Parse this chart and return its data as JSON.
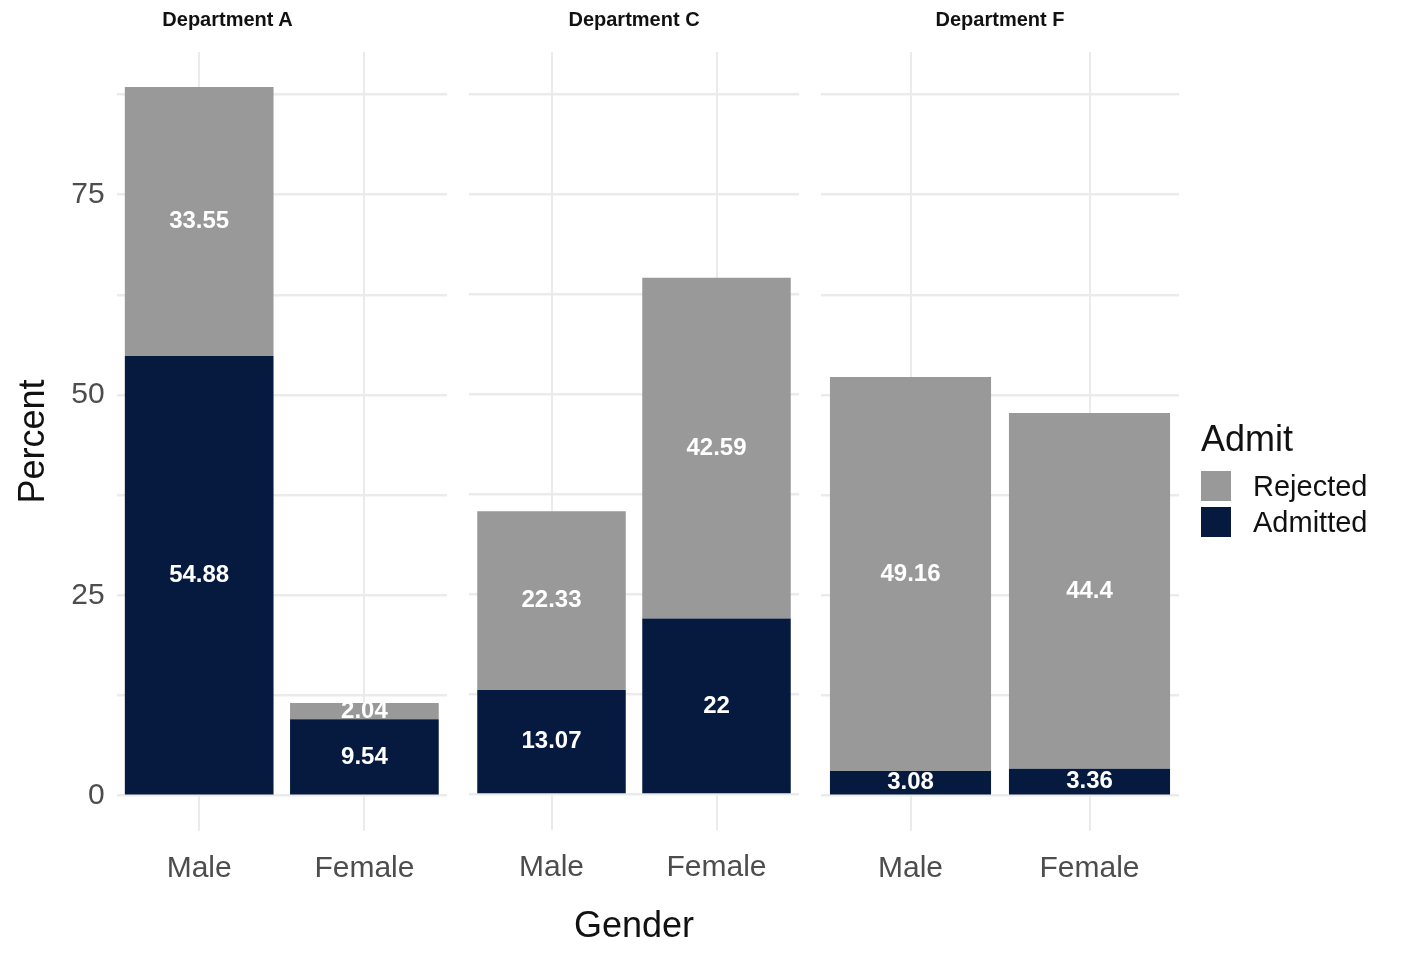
{
  "chart_data": [
    {
      "type": "bar",
      "title": "Department A",
      "ylabel": "Percent",
      "categories": [
        "Male",
        "Female"
      ],
      "stacked": true,
      "data_labels": true,
      "grid": true,
      "ylim": [
        -4.4,
        92.8
      ],
      "yticks": [
        0,
        {
          "value": 12.5,
          "label": null
        },
        25,
        {
          "value": 37.5,
          "label": null
        },
        50,
        {
          "value": 62.5,
          "label": null
        },
        75,
        {
          "value": 87.5,
          "label": null
        }
      ],
      "series": [
        {
          "color": "#061a40",
          "values": [
            54.88,
            9.54
          ]
        },
        {
          "color": "#999999",
          "values": [
            33.55,
            2.04
          ]
        }
      ]
    },
    {
      "type": "bar",
      "title": "Department C",
      "xlabel": "Gender",
      "categories": [
        "Male",
        "Female"
      ],
      "stacked": true,
      "data_labels": true,
      "grid": true,
      "tick_labels": "x",
      "ylim": [
        -4.4,
        92.8
      ],
      "yticks": [
        0,
        {
          "value": 12.5,
          "label": null
        },
        25,
        {
          "value": 37.5,
          "label": null
        },
        50,
        {
          "value": 62.5,
          "label": null
        },
        75,
        {
          "value": 87.5,
          "label": null
        }
      ],
      "series": [
        {
          "color": "#061a40",
          "values": [
            13.07,
            22
          ]
        },
        {
          "color": "#999999",
          "values": [
            22.33,
            42.59
          ]
        }
      ]
    },
    {
      "type": "bar",
      "title": "Department F",
      "categories": [
        "Male",
        "Female"
      ],
      "stacked": true,
      "data_labels": true,
      "grid": true,
      "tick_labels": "x",
      "legend": "right",
      "legend_title": "Admit",
      "ylim": [
        -4.4,
        92.8
      ],
      "yticks": [
        0,
        {
          "value": 12.5,
          "label": null
        },
        25,
        {
          "value": 37.5,
          "label": null
        },
        50,
        {
          "value": 62.5,
          "label": null
        },
        75,
        {
          "value": 87.5,
          "label": null
        }
      ],
      "series": [
        {
          "name": "Admitted",
          "color": "#061a40",
          "values": [
            3.08,
            3.36
          ]
        },
        {
          "name": "Rejected",
          "color": "#999999",
          "values": [
            49.16,
            44.4
          ]
        }
      ]
    }
  ]
}
